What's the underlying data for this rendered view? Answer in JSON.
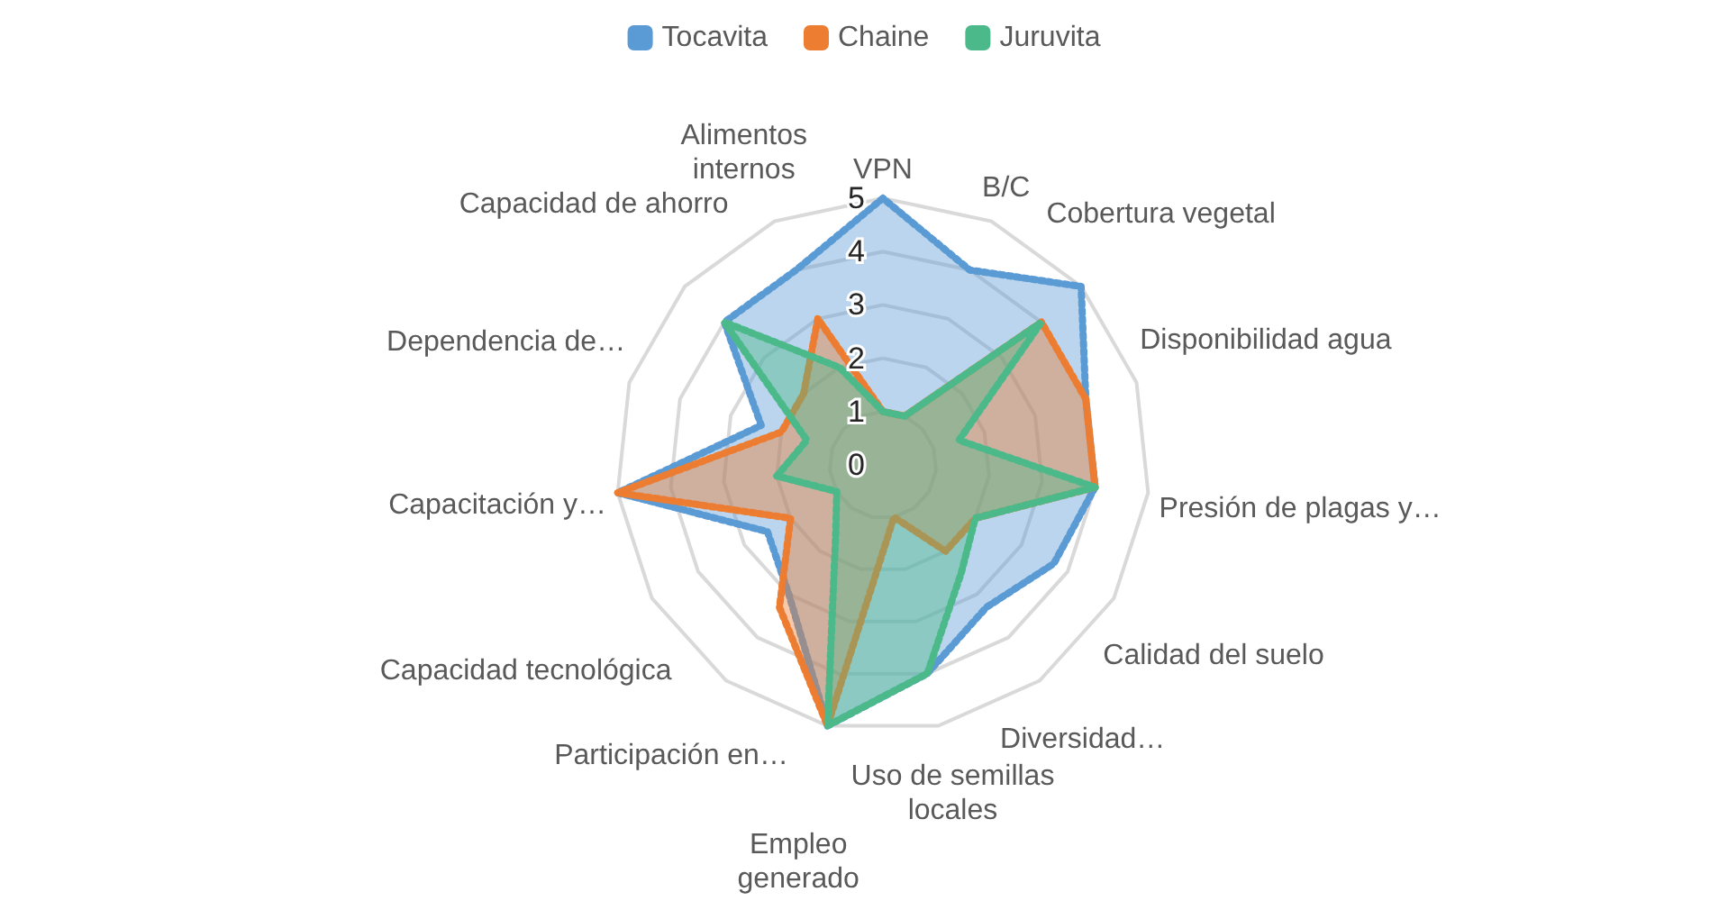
{
  "chart_data": {
    "type": "radar",
    "categories": [
      "VPN",
      "B/C",
      "Cobertura vegetal",
      "Disponibilidad agua",
      "Presión de plagas y…",
      "Calidad del suelo",
      "Diversidad…",
      "Uso de semillas locales",
      "Empleo generado",
      "Participación en…",
      "Capacidad tecnológica",
      "Capacitación y…",
      "Dependencia de…",
      "Capacidad de ahorro",
      "Alimentos internos"
    ],
    "series": [
      {
        "name": "Tocavita",
        "color": "#5b9bd5",
        "values": [
          5,
          4,
          5,
          4,
          4,
          3.7,
          3.3,
          4,
          5,
          3,
          2.5,
          5,
          2.4,
          4,
          4
        ]
      },
      {
        "name": "Chaine",
        "color": "#ed7d31",
        "values": [
          1,
          1,
          4,
          4,
          4,
          2,
          2,
          1,
          5,
          3.3,
          2,
          5,
          2,
          2,
          3
        ]
      },
      {
        "name": "Juruvita",
        "color": "#4cb98a",
        "values": [
          1,
          1,
          4,
          1.5,
          4,
          2,
          2.5,
          4,
          5,
          1.5,
          1,
          2,
          1.5,
          4,
          2
        ]
      }
    ],
    "ylim": [
      0,
      5
    ],
    "yticks": [
      0,
      1,
      2,
      3,
      4,
      5
    ],
    "grid": true,
    "legend": "top",
    "marker": "none",
    "line_style": "dotted"
  }
}
